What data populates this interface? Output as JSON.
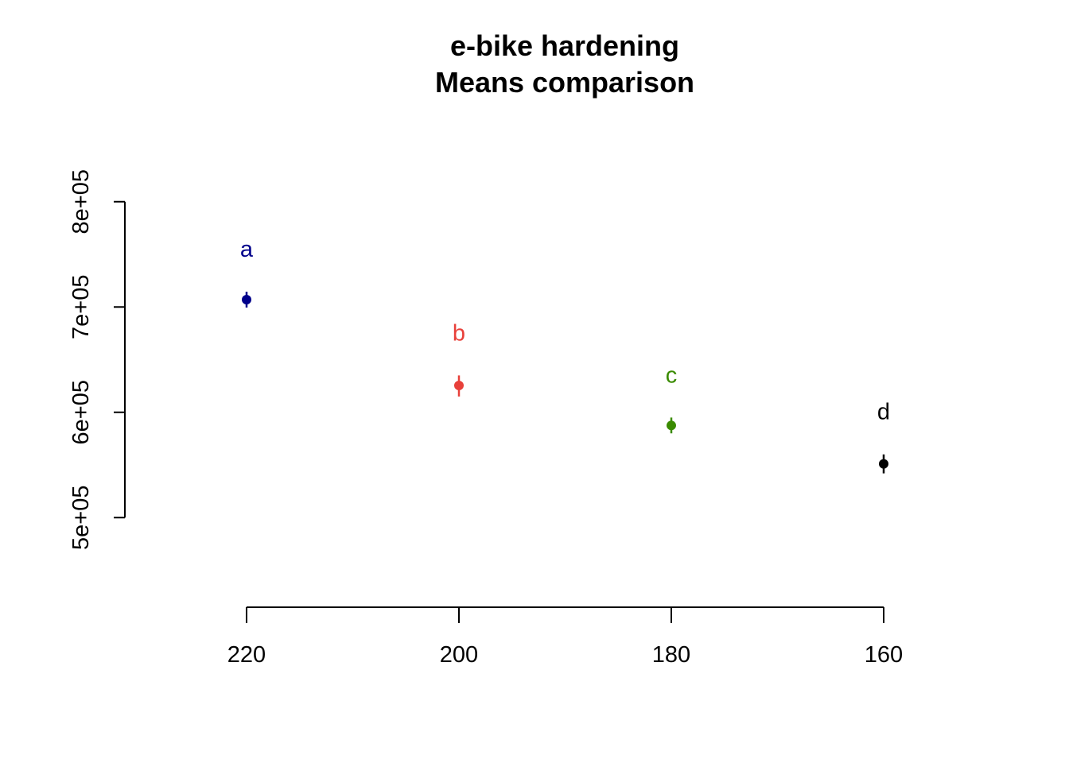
{
  "chart_data": {
    "type": "scatter",
    "title": [
      "e-bike hardening",
      "Means comparison"
    ],
    "xlabel": "",
    "ylabel": "",
    "x_categories": [
      "220",
      "200",
      "180",
      "160"
    ],
    "y_ticks": [
      500000,
      600000,
      700000,
      800000
    ],
    "y_tick_labels": [
      "5e+05",
      "6e+05",
      "7e+05",
      "8e+05"
    ],
    "ylim": [
      433000,
      867000
    ],
    "grid": false,
    "points": [
      {
        "x": "220",
        "mean": 707000,
        "lower": 699500,
        "upper": 714500,
        "group": "a",
        "color": "#00008B"
      },
      {
        "x": "200",
        "mean": 625500,
        "lower": 615000,
        "upper": 635000,
        "group": "b",
        "color": "#E8403A"
      },
      {
        "x": "180",
        "mean": 587500,
        "lower": 580000,
        "upper": 595000,
        "group": "c",
        "color": "#3A8B00"
      },
      {
        "x": "160",
        "mean": 551000,
        "lower": 542000,
        "upper": 560000,
        "group": "d",
        "color": "#000000"
      }
    ]
  }
}
